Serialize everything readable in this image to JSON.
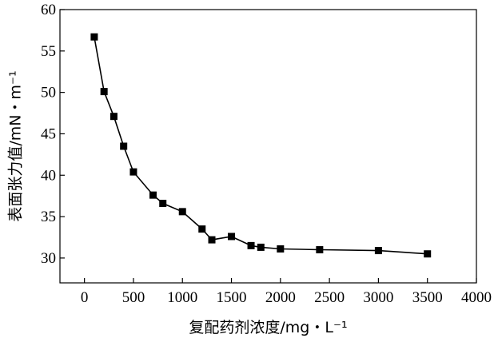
{
  "chart_data": {
    "type": "line",
    "title": "",
    "xlabel": "复配药剂浓度/mg・L⁻¹",
    "ylabel": "表面张力值/mN・m⁻¹",
    "xlim": [
      -250,
      4000
    ],
    "ylim": [
      27,
      60
    ],
    "x_ticks": [
      0,
      500,
      1000,
      1500,
      2000,
      2500,
      3000,
      3500,
      4000
    ],
    "x_tick_labels": [
      "0",
      "500",
      "1000",
      "1500",
      "2000",
      "2500",
      "3000",
      "3500",
      "4000"
    ],
    "y_ticks": [
      30,
      35,
      40,
      45,
      50,
      55,
      60
    ],
    "y_tick_labels": [
      "30",
      "35",
      "40",
      "45",
      "50",
      "55",
      "60"
    ],
    "grid": false,
    "marker": "square",
    "line_color": "#000000",
    "series": [
      {
        "x": [
          100,
          200,
          300,
          400,
          500,
          700,
          800,
          1000,
          1200,
          1300,
          1500,
          1700,
          1800,
          2000,
          2400,
          3000,
          3500
        ],
        "y": [
          56.7,
          50.1,
          47.1,
          43.5,
          40.4,
          37.6,
          36.6,
          35.6,
          33.5,
          32.2,
          32.6,
          31.5,
          31.3,
          31.1,
          31.0,
          30.9,
          30.5
        ]
      }
    ]
  }
}
